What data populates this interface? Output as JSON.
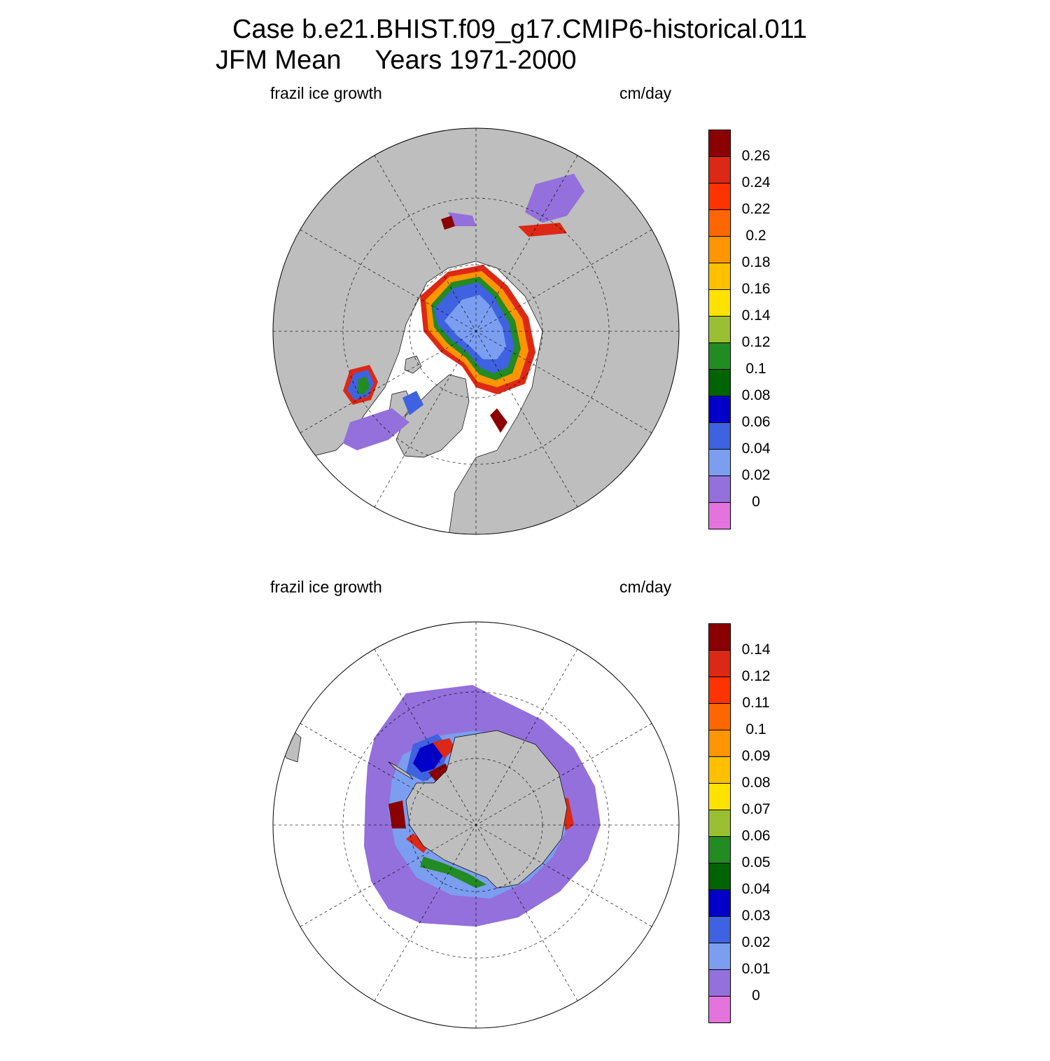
{
  "title": {
    "case": "Case b.e21.BHIST.f09_g17.CMIP6-historical.011",
    "season": "JFM Mean",
    "years": "Years 1971-2000"
  },
  "panels": [
    {
      "hemisphere": "north",
      "variable": "frazil ice growth",
      "units": "cm/day",
      "colorbar": {
        "levels": [
          "0",
          "0.02",
          "0.04",
          "0.06",
          "0.08",
          "0.1",
          "0.12",
          "0.14",
          "0.16",
          "0.18",
          "0.2",
          "0.22",
          "0.24",
          "0.26"
        ]
      }
    },
    {
      "hemisphere": "south",
      "variable": "frazil ice growth",
      "units": "cm/day",
      "colorbar": {
        "levels": [
          "0",
          "0.01",
          "0.02",
          "0.03",
          "0.04",
          "0.05",
          "0.06",
          "0.07",
          "0.08",
          "0.09",
          "0.1",
          "0.11",
          "0.12",
          "0.14"
        ]
      }
    }
  ],
  "colors": {
    "palette": [
      "#e473dd",
      "#9370db",
      "#7b9ef0",
      "#3f62e0",
      "#0000c8",
      "#006400",
      "#228b22",
      "#9ac032",
      "#ffe200",
      "#ffc000",
      "#ff9500",
      "#ff6600",
      "#ff3300",
      "#dc2814",
      "#8b0000"
    ],
    "land": "#bebebe",
    "no_data": "#ffffff"
  }
}
